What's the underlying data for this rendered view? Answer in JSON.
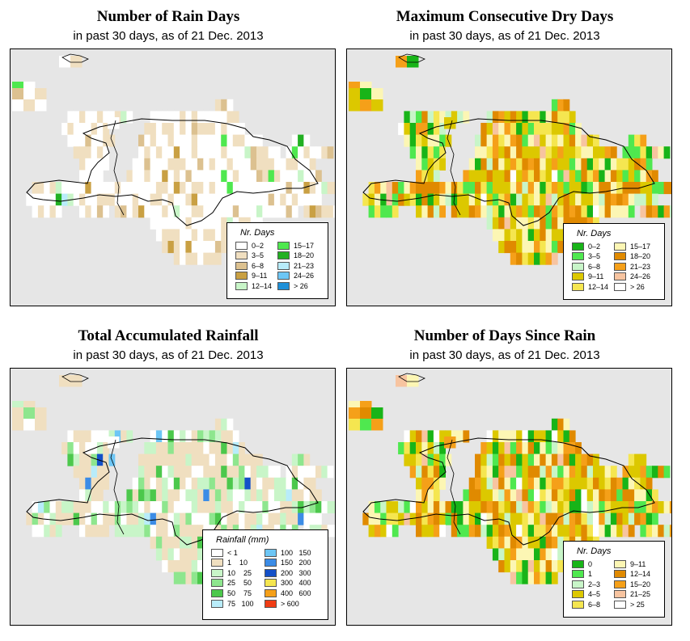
{
  "panels": [
    {
      "id": "rain_days",
      "title": "Number of Rain Days",
      "subtitle": "in past 30 days, as of  21 Dec. 2013",
      "legend": {
        "title": "Nr. Days",
        "items": [
          {
            "label": "0–2",
            "color": "#ffffff"
          },
          {
            "label": "3–5",
            "color": "#f0dfc0"
          },
          {
            "label": "6–8",
            "color": "#dcc190"
          },
          {
            "label": "9–11",
            "color": "#c9a043"
          },
          {
            "label": "12–14",
            "color": "#c8f5c8"
          },
          {
            "label": "15–17",
            "color": "#4fe84f"
          },
          {
            "label": "18–20",
            "color": "#22b022"
          },
          {
            "label": "21–23",
            "color": "#b8ecfa"
          },
          {
            "label": "24–26",
            "color": "#6dc6f5"
          },
          {
            "label": "> 26",
            "color": "#1f90d8"
          }
        ]
      }
    },
    {
      "id": "dry_days",
      "title": "Maximum Consecutive Dry Days",
      "subtitle": "in past 30 days, as of  21 Dec. 2013",
      "legend": {
        "title": "Nr. Days",
        "items": [
          {
            "label": "0–2",
            "color": "#18b418"
          },
          {
            "label": "3–5",
            "color": "#4fe84f"
          },
          {
            "label": "6–8",
            "color": "#c8f5c8"
          },
          {
            "label": "9–11",
            "color": "#dcc800"
          },
          {
            "label": "12–14",
            "color": "#f5e650"
          },
          {
            "label": "15–17",
            "color": "#fcf6b4"
          },
          {
            "label": "18–20",
            "color": "#e08a00"
          },
          {
            "label": "21–23",
            "color": "#f5a019"
          },
          {
            "label": "24–26",
            "color": "#f7c4a0"
          },
          {
            "label": "> 26",
            "color": "#ffffff"
          }
        ]
      }
    },
    {
      "id": "rainfall",
      "title": "Total Accumulated Rainfall",
      "subtitle": "in past 30 days, as of  21 Dec. 2013",
      "legend": {
        "title": "Rainfall (mm)",
        "items": [
          {
            "label": "< 1",
            "color": "#ffffff"
          },
          {
            "label": "1    10",
            "color": "#f0dfc0"
          },
          {
            "label": "10    25",
            "color": "#c8f5c8"
          },
          {
            "label": "25    50",
            "color": "#8ee68e"
          },
          {
            "label": "50    75",
            "color": "#4cc84c"
          },
          {
            "label": "75   100",
            "color": "#b8ecfa"
          },
          {
            "label": "100   150",
            "color": "#6dc6f5"
          },
          {
            "label": "150   200",
            "color": "#3c8ce6"
          },
          {
            "label": "200   300",
            "color": "#1450c8"
          },
          {
            "label": "300   400",
            "color": "#f5e650"
          },
          {
            "label": "400   600",
            "color": "#f5a019"
          },
          {
            "label": "> 600",
            "color": "#f03c14"
          }
        ]
      }
    },
    {
      "id": "days_since_rain",
      "title": "Number of Days Since Rain",
      "subtitle": "in past 30 days, as of  21 Dec. 2013",
      "legend": {
        "title": "Nr. Days",
        "items": [
          {
            "label": "0",
            "color": "#18b418"
          },
          {
            "label": "1",
            "color": "#4fe84f"
          },
          {
            "label": "2–3",
            "color": "#c8f5c8"
          },
          {
            "label": "4–5",
            "color": "#dcc800"
          },
          {
            "label": "6–8",
            "color": "#f5e650"
          },
          {
            "label": "9–11",
            "color": "#fcf6b4"
          },
          {
            "label": "12–14",
            "color": "#e08a00"
          },
          {
            "label": "15–20",
            "color": "#f5a019"
          },
          {
            "label": "21–25",
            "color": "#f7c4a0"
          },
          {
            "label": "> 25",
            "color": "#ffffff"
          }
        ]
      }
    }
  ]
}
